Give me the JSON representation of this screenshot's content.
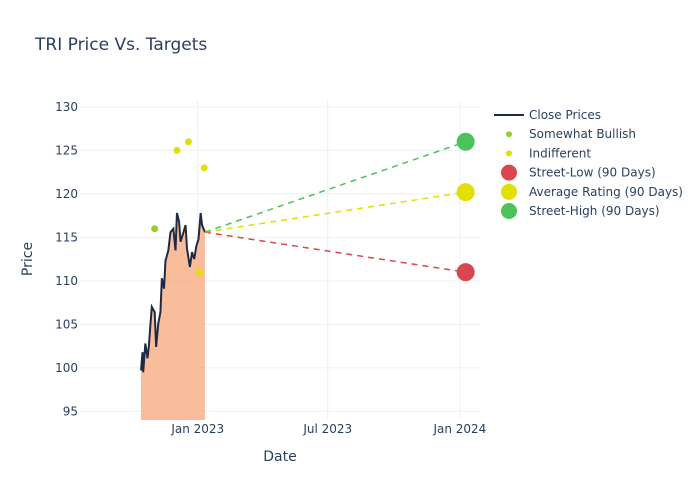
{
  "chart_data": {
    "type": "line",
    "title": "TRI Price Vs. Targets",
    "xlabel": "Date",
    "ylabel": "Price",
    "xlim": [
      "2022-07-21",
      "2024-01-29"
    ],
    "ylim": [
      94,
      130.8
    ],
    "x_ticks": [
      {
        "date": "2023-01-01",
        "label": "Jan 2023"
      },
      {
        "date": "2023-07-01",
        "label": "Jul 2023"
      },
      {
        "date": "2024-01-01",
        "label": "Jan 2024"
      }
    ],
    "y_ticks": [
      95,
      100,
      105,
      110,
      115,
      120,
      125,
      130
    ],
    "grid": true,
    "legend_position": "right",
    "series": [
      {
        "name": "Close Prices",
        "kind": "line-with-fill",
        "color": "#1f2a44",
        "fill_color": "#f7a77a",
        "points": [
          [
            "2022-10-14",
            99.7
          ],
          [
            "2022-10-16",
            101.8
          ],
          [
            "2022-10-17",
            99.5
          ],
          [
            "2022-10-20",
            102.8
          ],
          [
            "2022-10-23",
            101.1
          ],
          [
            "2022-10-25",
            102.6
          ],
          [
            "2022-10-27",
            104.9
          ],
          [
            "2022-10-29",
            107.0
          ],
          [
            "2022-11-02",
            106.4
          ],
          [
            "2022-11-04",
            102.4
          ],
          [
            "2022-11-07",
            105.1
          ],
          [
            "2022-11-10",
            106.4
          ],
          [
            "2022-11-12",
            110.3
          ],
          [
            "2022-11-15",
            109.1
          ],
          [
            "2022-11-17",
            112.3
          ],
          [
            "2022-11-21",
            113.5
          ],
          [
            "2022-11-24",
            115.6
          ],
          [
            "2022-11-28",
            116.0
          ],
          [
            "2022-12-01",
            113.5
          ],
          [
            "2022-12-03",
            117.8
          ],
          [
            "2022-12-06",
            116.8
          ],
          [
            "2022-12-08",
            114.5
          ],
          [
            "2022-12-11",
            115.3
          ],
          [
            "2022-12-15",
            116.4
          ],
          [
            "2022-12-17",
            113.7
          ],
          [
            "2022-12-21",
            111.6
          ],
          [
            "2022-12-24",
            113.3
          ],
          [
            "2022-12-27",
            112.5
          ],
          [
            "2022-12-30",
            114.0
          ],
          [
            "2023-01-02",
            114.8
          ],
          [
            "2023-01-05",
            117.8
          ],
          [
            "2023-01-07",
            116.4
          ],
          [
            "2023-01-11",
            115.6
          ]
        ]
      },
      {
        "name": "Somewhat Bullish",
        "kind": "scatter",
        "color": "#9acd32",
        "size": "small",
        "points": [
          [
            "2022-11-02",
            116
          ]
        ]
      },
      {
        "name": "Indifferent",
        "kind": "scatter",
        "color": "#e2e000",
        "size": "small",
        "points": [
          [
            "2022-12-03",
            125
          ],
          [
            "2022-12-19",
            126
          ],
          [
            "2023-01-10",
            123
          ],
          [
            "2023-01-03",
            111
          ]
        ]
      },
      {
        "name": "Street-Low (90 Days)",
        "kind": "target",
        "color": "#d9464f",
        "size": "large",
        "from": [
          "2023-01-11",
          115.6
        ],
        "points": [
          [
            "2024-01-09",
            111
          ]
        ]
      },
      {
        "name": "Average Rating (90 Days)",
        "kind": "target",
        "color": "#e2e000",
        "size": "large",
        "from": [
          "2023-01-11",
          115.6
        ],
        "points": [
          [
            "2024-01-09",
            120.2
          ]
        ]
      },
      {
        "name": "Street-High (90 Days)",
        "kind": "target",
        "color": "#4cc25a",
        "size": "large",
        "from": [
          "2023-01-11",
          115.6
        ],
        "points": [
          [
            "2024-01-09",
            126
          ]
        ]
      }
    ]
  }
}
